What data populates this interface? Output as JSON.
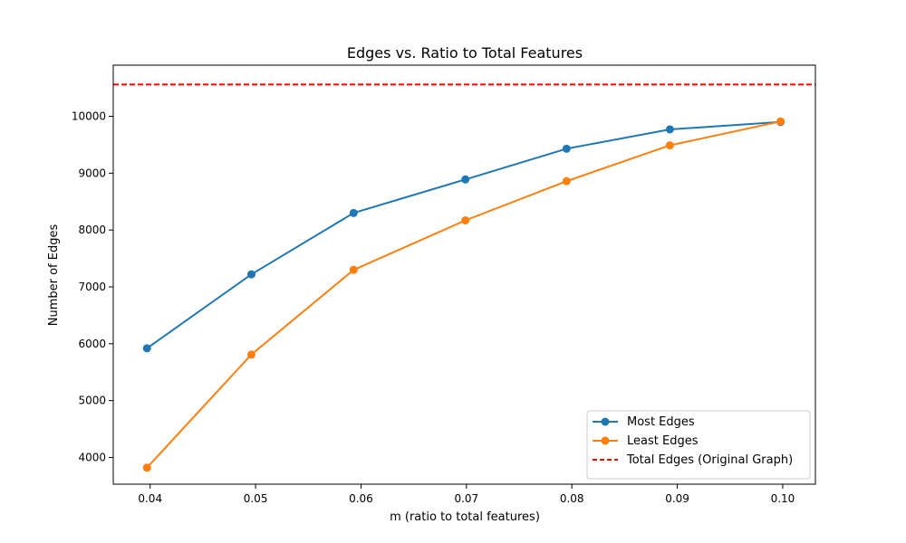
{
  "chart_data": {
    "type": "line",
    "title": "Edges vs. Ratio to Total Features",
    "xlabel": "m (ratio to total features)",
    "ylabel": "Number of Edges",
    "xlim": [
      0.0365,
      0.1031
    ],
    "ylim": [
      3530,
      10900
    ],
    "x_ticks": [
      0.04,
      0.05,
      0.06,
      0.07,
      0.08,
      0.09,
      0.1
    ],
    "x_tick_labels": [
      "0.04",
      "0.05",
      "0.06",
      "0.07",
      "0.08",
      "0.09",
      "0.10"
    ],
    "y_ticks": [
      4000,
      5000,
      6000,
      7000,
      8000,
      9000,
      10000
    ],
    "y_tick_labels": [
      "4000",
      "5000",
      "6000",
      "7000",
      "8000",
      "9000",
      "10000"
    ],
    "x": [
      0.0397,
      0.0496,
      0.0593,
      0.0699,
      0.0795,
      0.0893,
      0.0998
    ],
    "series": [
      {
        "name": "Most Edges",
        "color": "#1f77b4",
        "marker": "circle",
        "values": [
          5920,
          7220,
          8300,
          8890,
          9430,
          9770,
          9900
        ]
      },
      {
        "name": "Least Edges",
        "color": "#ff7f0e",
        "marker": "circle",
        "values": [
          3820,
          5810,
          7300,
          8170,
          8860,
          9490,
          9910
        ]
      }
    ],
    "reference_lines": [
      {
        "name": "Total Edges (Original Graph)",
        "orientation": "horizontal",
        "value": 10560,
        "color": "#ff0000",
        "style": "dashed"
      }
    ],
    "grid": false,
    "legend_position": "lower right"
  }
}
